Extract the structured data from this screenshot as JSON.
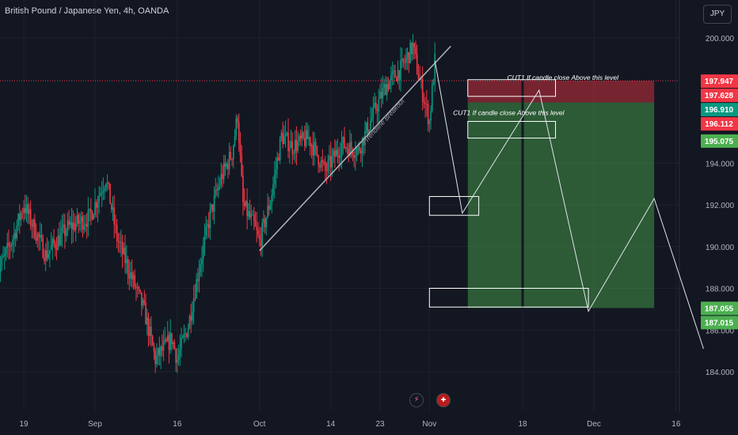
{
  "header": {
    "title": "British Pound / Japanese Yen, 4h, OANDA",
    "currency": "JPY"
  },
  "icons": [
    "bolt-icon",
    "uk-flag-icon"
  ],
  "chart_data": {
    "type": "candlestick",
    "symbol": "GBPJPY",
    "interval": "4h",
    "y_range": [
      183.3,
      202.3
    ],
    "price_ticks": [
      "200.000",
      "194.000",
      "192.000",
      "190.000",
      "188.000",
      "186.000",
      "184.000"
    ],
    "price_tick_values": [
      200,
      194,
      192,
      190,
      188,
      186,
      184
    ],
    "x_ticks": [
      {
        "label": "19",
        "date": "2024-08-19"
      },
      {
        "label": "Sep",
        "date": "2024-09-01"
      },
      {
        "label": "16",
        "date": "2024-09-16"
      },
      {
        "label": "Oct",
        "date": "2024-10-01"
      },
      {
        "label": "14",
        "date": "2024-10-14"
      },
      {
        "label": "23",
        "date": "2024-10-23"
      },
      {
        "label": "Nov",
        "date": "2024-11-01"
      },
      {
        "label": "18",
        "date": "2024-11-18"
      },
      {
        "label": "Dec",
        "date": "2024-12-01"
      },
      {
        "label": "16",
        "date": "2024-12-16"
      }
    ],
    "price_badges": [
      {
        "label": "197.947",
        "value": 197.947,
        "color": "#f23645"
      },
      {
        "label": "197.628",
        "value": 197.628,
        "color": "#f23645"
      },
      {
        "label": "196.910",
        "value": 196.91,
        "color": "#089981"
      },
      {
        "label": "196.112",
        "value": 196.112,
        "color": "#f23645"
      },
      {
        "label": "195.075",
        "value": 195.075,
        "color": "#4caf50"
      },
      {
        "label": "187.055",
        "value": 187.055,
        "color": "#4caf50"
      },
      {
        "label": "187.015",
        "value": 187.015,
        "color": "#4caf50"
      }
    ],
    "current_price": 197.947,
    "annotations": {
      "cut1_upper": "CUT1 If candle close Above this level",
      "cut1_lower": "CUT1 If candle close Above this level",
      "trendline_label": "Trendline Breakout"
    },
    "trendline": {
      "start": {
        "date": "2024-10-01",
        "price": 189.8
      },
      "end": {
        "date": "2024-11-02",
        "price": 199.0
      }
    },
    "positions": [
      {
        "type": "short",
        "start": "2024-11-08",
        "split": "2024-11-18",
        "end": "2024-12-12",
        "entry": 196.91,
        "stop": 197.947,
        "target": 187.055
      }
    ],
    "zones": [
      {
        "name": "upper-zone",
        "start": "2024-11-08",
        "end": "2024-11-24",
        "low": 197.2,
        "high": 198.0
      },
      {
        "name": "mid-zone",
        "start": "2024-11-08",
        "end": "2024-11-24",
        "low": 195.2,
        "high": 196.0
      },
      {
        "name": "left-zone",
        "start": "2024-11-01",
        "end": "2024-11-10",
        "low": 191.5,
        "high": 192.4
      },
      {
        "name": "target-zone",
        "start": "2024-11-01",
        "end": "2024-11-30",
        "low": 187.1,
        "high": 188.0
      }
    ],
    "projection_path": [
      {
        "date": "2024-11-02",
        "price": 198.9
      },
      {
        "date": "2024-11-07",
        "price": 191.6
      },
      {
        "date": "2024-11-21",
        "price": 197.5
      },
      {
        "date": "2024-11-30",
        "price": 186.9
      },
      {
        "date": "2024-12-12",
        "price": 192.3
      },
      {
        "date": "2024-12-21",
        "price": 185.1
      }
    ],
    "price_path_anchors": [
      {
        "date": "2024-08-14",
        "price": 188.6
      },
      {
        "date": "2024-08-17",
        "price": 190.4
      },
      {
        "date": "2024-08-19",
        "price": 192.0
      },
      {
        "date": "2024-08-23",
        "price": 189.6
      },
      {
        "date": "2024-08-27",
        "price": 190.9
      },
      {
        "date": "2024-08-31",
        "price": 191.4
      },
      {
        "date": "2024-09-03",
        "price": 193.3
      },
      {
        "date": "2024-09-05",
        "price": 190.4
      },
      {
        "date": "2024-09-07",
        "price": 189.0
      },
      {
        "date": "2024-09-10",
        "price": 186.9
      },
      {
        "date": "2024-09-12",
        "price": 184.6
      },
      {
        "date": "2024-09-15",
        "price": 185.6
      },
      {
        "date": "2024-09-16",
        "price": 184.6
      },
      {
        "date": "2024-09-18",
        "price": 186.2
      },
      {
        "date": "2024-09-20",
        "price": 189.0
      },
      {
        "date": "2024-09-22",
        "price": 191.5
      },
      {
        "date": "2024-09-24",
        "price": 193.3
      },
      {
        "date": "2024-09-26",
        "price": 194.5
      },
      {
        "date": "2024-09-27",
        "price": 196.3
      },
      {
        "date": "2024-09-28",
        "price": 192.0
      },
      {
        "date": "2024-09-30",
        "price": 191.0
      },
      {
        "date": "2024-10-01",
        "price": 190.2
      },
      {
        "date": "2024-10-03",
        "price": 192.2
      },
      {
        "date": "2024-10-05",
        "price": 195.3
      },
      {
        "date": "2024-10-07",
        "price": 194.8
      },
      {
        "date": "2024-10-10",
        "price": 195.2
      },
      {
        "date": "2024-10-13",
        "price": 193.6
      },
      {
        "date": "2024-10-16",
        "price": 194.9
      },
      {
        "date": "2024-10-19",
        "price": 194.6
      },
      {
        "date": "2024-10-22",
        "price": 196.5
      },
      {
        "date": "2024-10-24",
        "price": 197.7
      },
      {
        "date": "2024-10-27",
        "price": 198.6
      },
      {
        "date": "2024-10-29",
        "price": 199.6
      },
      {
        "date": "2024-10-30",
        "price": 198.2
      },
      {
        "date": "2024-11-01",
        "price": 196.0
      },
      {
        "date": "2024-11-02",
        "price": 198.9
      }
    ]
  }
}
